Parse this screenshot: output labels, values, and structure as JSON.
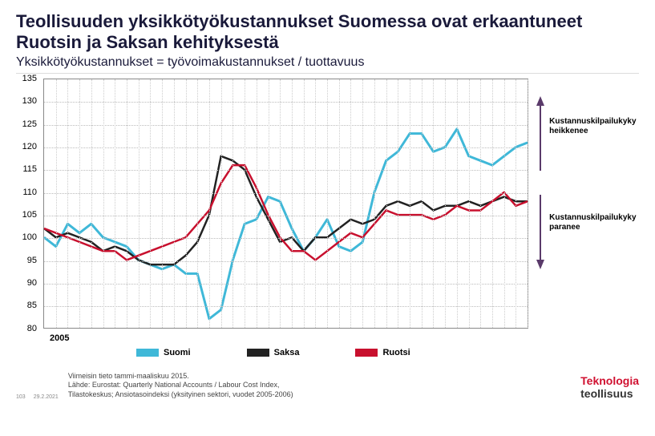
{
  "title": "Teollisuuden yksikkötyökustannukset Suomessa ovat erkaantuneet Ruotsin ja Saksan kehityksestä",
  "subtitle": "Yksikkötyökustannukset = työvoimakustannukset / tuottavuus",
  "index_label": "2005=100",
  "chart": {
    "type": "line",
    "ylim": [
      80,
      135
    ],
    "ytick_step": 5,
    "x_label": "2005",
    "grid_color": "#bbbbbb",
    "background_color": "#ffffff",
    "x_count": 42,
    "series": [
      {
        "name": "Suomi",
        "color": "#3fb8d8",
        "width": 3,
        "values": [
          100,
          98,
          103,
          101,
          103,
          100,
          99,
          98,
          95,
          94,
          93,
          94,
          92,
          92,
          82,
          84,
          95,
          103,
          104,
          109,
          108,
          102,
          97,
          100,
          104,
          98,
          97,
          99,
          110,
          117,
          119,
          123,
          123,
          119,
          120,
          124,
          118,
          117,
          116,
          118,
          120,
          121
        ]
      },
      {
        "name": "Saksa",
        "color": "#222222",
        "width": 2.5,
        "values": [
          102,
          100,
          101,
          100,
          99,
          97,
          98,
          97,
          95,
          94,
          94,
          94,
          96,
          99,
          105,
          118,
          117,
          115,
          109,
          104,
          99,
          100,
          97,
          100,
          100,
          102,
          104,
          103,
          104,
          107,
          108,
          107,
          108,
          106,
          107,
          107,
          108,
          107,
          108,
          109,
          108,
          108
        ]
      },
      {
        "name": "Ruotsi",
        "color": "#c8102e",
        "width": 2.5,
        "values": [
          102,
          101,
          100,
          99,
          98,
          97,
          97,
          95,
          96,
          97,
          98,
          99,
          100,
          103,
          106,
          112,
          116,
          116,
          111,
          105,
          100,
          97,
          97,
          95,
          97,
          99,
          101,
          100,
          103,
          106,
          105,
          105,
          105,
          104,
          105,
          107,
          106,
          106,
          108,
          110,
          107,
          108
        ]
      }
    ]
  },
  "legend": {
    "items": [
      {
        "label": "Suomi",
        "color": "#3fb8d8"
      },
      {
        "label": "Saksa",
        "color": "#222222"
      },
      {
        "label": "Ruotsi",
        "color": "#c8102e"
      }
    ]
  },
  "annotations": {
    "up": "Kustannus­kilpailukyky heikkenee",
    "down": "Kustannus­kilpailukyky paranee",
    "arrow_color": "#5a3a6a"
  },
  "footer": {
    "page": "103",
    "date": "29.2.2021",
    "note": "Viimeisin tieto tammi-maaliskuu 2015.\nLähde: Eurostat: Quarterly National Accounts / Labour Cost Index,\nTilastokeskus; Ansiotasoindeksi (yksityinen sektori, vuodet 2005-2006)",
    "logo1": "Teknologia",
    "logo2": "teollisuus"
  }
}
